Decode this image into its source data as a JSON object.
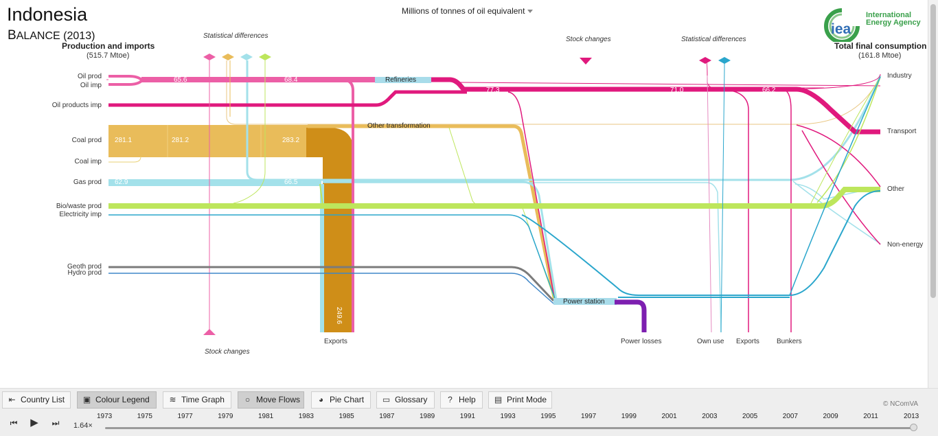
{
  "header": {
    "country": "Indonesia",
    "balance_cap": "B",
    "balance_rest": "ALANCE",
    "balance_year": "(2013)",
    "units": "Millions of tonnes of oil equivalent"
  },
  "logo": {
    "line1": "International",
    "line2": "Energy Agency",
    "mark": "iea"
  },
  "left_header": {
    "title": "Production and imports",
    "total": "(515.7 Mtoe)"
  },
  "right_header": {
    "title": "Total final consumption",
    "total": "(161.8 Mtoe)"
  },
  "sources": [
    "Oil prod",
    "Oil imp",
    "Oil products imp",
    "Coal prod",
    "Coal imp",
    "Gas prod",
    "Bio/waste prod",
    "Electricity imp",
    "Geoth prod",
    "Hydro prod"
  ],
  "sinks": [
    "Industry",
    "Transport",
    "Other",
    "Non-energy"
  ],
  "nodes": {
    "refineries": "Refineries",
    "other_transformation": "Other transformation",
    "power_station": "Power station"
  },
  "annotations": {
    "stat_diff_left": "Statistical differences",
    "stat_diff_right": "Statistical differences",
    "stock_changes_top": "Stock  changes",
    "stock_changes_bottom": "Stock changes"
  },
  "outputs": {
    "exports_left": "Exports",
    "power_losses": "Power losses",
    "own_use": "Own use",
    "exports_right": "Exports",
    "bunkers": "Bunkers"
  },
  "values": {
    "oil_a": "65.6",
    "oil_b": "68.4",
    "oilprod_c": "77.3",
    "oilprod_d": "71.0",
    "oilprod_e": "66.2",
    "coal_a": "281.1",
    "coal_b": "281.2",
    "coal_c": "283.2",
    "gas_a": "62.9",
    "gas_b": "66.5",
    "coal_export": "249.6"
  },
  "toolbar": {
    "country_list": "Country List",
    "colour_legend": "Colour Legend",
    "time_graph": "Time Graph",
    "move_flows": "Move Flows",
    "pie_chart": "Pie Chart",
    "glossary": "Glossary",
    "help": "Help",
    "print_mode": "Print Mode"
  },
  "credit": "© NComVA",
  "timeline": {
    "speed": "1.64×",
    "years": [
      "1973",
      "1975",
      "1977",
      "1979",
      "1981",
      "1983",
      "1985",
      "1987",
      "1989",
      "1991",
      "1993",
      "1995",
      "1997",
      "1999",
      "2001",
      "2003",
      "2005",
      "2007",
      "2009",
      "2011",
      "2013"
    ],
    "selected_year": "2013"
  },
  "colors": {
    "oil": "#ec5fa6",
    "oil_products": "#e0197d",
    "coal": "#e9bc5a",
    "coal_export": "#cf8e18",
    "gas": "#a3e1ea",
    "bio": "#bde65c",
    "electricity": "#2aa6cc",
    "geoth": "#7b7b7b",
    "hydro": "#3f87c8",
    "power_losses": "#7d1fb0",
    "logo_green": "#3aa04b"
  }
}
